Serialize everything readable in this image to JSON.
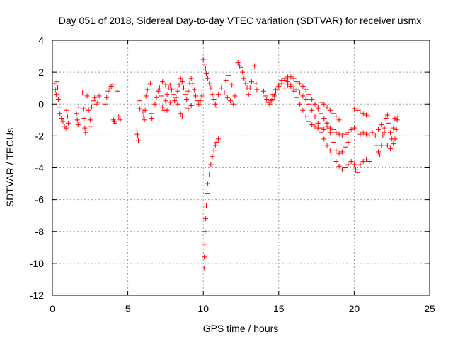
{
  "chart_data": {
    "type": "scatter",
    "title": "Day 051 of 2018, Sidereal Day-to-day VTEC variation (SDTVAR) for receiver usmx",
    "xlabel": "GPS time / hours",
    "ylabel": "SDTVAR / TECUs",
    "xlim": [
      0,
      25
    ],
    "ylim": [
      -12,
      4
    ],
    "xticks": [
      0,
      5,
      10,
      15,
      20,
      25
    ],
    "xtick_labels": [
      "0",
      "5",
      "10",
      "15",
      "20",
      "25"
    ],
    "yticks": [
      4,
      2,
      0,
      -2,
      -4,
      -6,
      -8,
      -10,
      -12
    ],
    "ytick_labels": [
      "4",
      "2",
      "0",
      "-2",
      "-4",
      "-6",
      "-8",
      "-10",
      "-12"
    ],
    "grid": true,
    "marker": "+",
    "color": "#ff0000",
    "series": [
      {
        "name": "SDTVAR",
        "points": [
          [
            0.15,
            1.3
          ],
          [
            0.2,
            0.9
          ],
          [
            0.25,
            0.6
          ],
          [
            0.3,
            1.4
          ],
          [
            0.35,
            1.0
          ],
          [
            0.4,
            0.3
          ],
          [
            0.45,
            -0.2
          ],
          [
            0.5,
            -0.6
          ],
          [
            0.6,
            -0.9
          ],
          [
            0.7,
            -1.1
          ],
          [
            0.8,
            -1.4
          ],
          [
            0.9,
            -1.5
          ],
          [
            0.95,
            -0.4
          ],
          [
            1.0,
            -0.8
          ],
          [
            1.05,
            -1.2
          ],
          [
            1.6,
            -0.6
          ],
          [
            1.65,
            -1.0
          ],
          [
            1.7,
            -1.3
          ],
          [
            1.75,
            -0.2
          ],
          [
            2.0,
            0.7
          ],
          [
            2.05,
            -0.3
          ],
          [
            2.1,
            -0.9
          ],
          [
            2.15,
            -1.5
          ],
          [
            2.2,
            -1.8
          ],
          [
            2.3,
            0.5
          ],
          [
            2.4,
            -0.4
          ],
          [
            2.5,
            -1.0
          ],
          [
            2.55,
            -1.4
          ],
          [
            2.6,
            -0.2
          ],
          [
            2.7,
            0.2
          ],
          [
            2.8,
            0.4
          ],
          [
            2.9,
            0.0
          ],
          [
            3.0,
            0.1
          ],
          [
            3.1,
            0.5
          ],
          [
            3.5,
            0.0
          ],
          [
            3.6,
            0.4
          ],
          [
            3.7,
            0.8
          ],
          [
            3.8,
            1.0
          ],
          [
            3.9,
            1.1
          ],
          [
            4.0,
            1.2
          ],
          [
            4.05,
            -1.0
          ],
          [
            4.1,
            -1.1
          ],
          [
            4.15,
            -1.2
          ],
          [
            4.3,
            0.8
          ],
          [
            4.4,
            -0.8
          ],
          [
            4.5,
            -1.0
          ],
          [
            5.6,
            -1.7
          ],
          [
            5.62,
            -1.9
          ],
          [
            5.65,
            -2.0
          ],
          [
            5.7,
            -2.3
          ],
          [
            5.75,
            0.2
          ],
          [
            5.8,
            -0.3
          ],
          [
            6.0,
            -0.5
          ],
          [
            6.05,
            -0.8
          ],
          [
            6.1,
            -1.0
          ],
          [
            6.15,
            -0.4
          ],
          [
            6.2,
            0.5
          ],
          [
            6.3,
            0.9
          ],
          [
            6.4,
            1.2
          ],
          [
            6.5,
            1.3
          ],
          [
            6.55,
            -0.6
          ],
          [
            6.6,
            -0.9
          ],
          [
            6.8,
            0.0
          ],
          [
            6.9,
            0.4
          ],
          [
            7.0,
            0.8
          ],
          [
            7.1,
            1.0
          ],
          [
            7.2,
            0.5
          ],
          [
            7.3,
            -0.2
          ],
          [
            7.4,
            -0.4
          ],
          [
            7.5,
            0.2
          ],
          [
            7.6,
            0.6
          ],
          [
            7.7,
            1.0
          ],
          [
            7.8,
            1.2
          ],
          [
            7.9,
            0.9
          ],
          [
            8.0,
            0.6
          ],
          [
            8.1,
            0.2
          ],
          [
            8.2,
            0.4
          ],
          [
            8.3,
            0.8
          ],
          [
            8.4,
            1.2
          ],
          [
            8.5,
            1.6
          ],
          [
            8.6,
            1.4
          ],
          [
            8.7,
            1.0
          ],
          [
            8.8,
            0.6
          ],
          [
            8.9,
            0.3
          ],
          [
            9.0,
            0.8
          ],
          [
            9.1,
            1.3
          ],
          [
            9.2,
            1.6
          ],
          [
            9.3,
            1.3
          ],
          [
            9.4,
            0.9
          ],
          [
            9.5,
            0.5
          ],
          [
            9.6,
            0.2
          ],
          [
            9.7,
            0.0
          ],
          [
            9.8,
            0.2
          ],
          [
            9.9,
            0.5
          ],
          [
            7.3,
            1.4
          ],
          [
            7.5,
            1.2
          ],
          [
            8.0,
            1.0
          ],
          [
            8.5,
            -0.6
          ],
          [
            8.8,
            -0.2
          ],
          [
            9.0,
            -0.3
          ],
          [
            9.2,
            -0.1
          ],
          [
            8.6,
            -0.8
          ],
          [
            8.3,
            0.0
          ],
          [
            7.8,
            0.1
          ],
          [
            7.6,
            -0.4
          ],
          [
            10.0,
            2.8
          ],
          [
            10.1,
            2.5
          ],
          [
            10.15,
            2.2
          ],
          [
            10.2,
            1.9
          ],
          [
            10.3,
            1.6
          ],
          [
            10.4,
            1.3
          ],
          [
            10.5,
            1.0
          ],
          [
            10.6,
            0.6
          ],
          [
            10.7,
            0.3
          ],
          [
            10.8,
            0.0
          ],
          [
            10.9,
            -0.2
          ],
          [
            10.05,
            -10.3
          ],
          [
            10.07,
            -9.6
          ],
          [
            10.1,
            -8.8
          ],
          [
            10.12,
            -8.0
          ],
          [
            10.15,
            -7.2
          ],
          [
            10.2,
            -6.4
          ],
          [
            10.25,
            -5.6
          ],
          [
            10.3,
            -5.0
          ],
          [
            10.4,
            -4.4
          ],
          [
            10.5,
            -3.8
          ],
          [
            10.6,
            -3.3
          ],
          [
            10.7,
            -2.9
          ],
          [
            10.8,
            -2.6
          ],
          [
            10.9,
            -2.4
          ],
          [
            11.0,
            -2.2
          ],
          [
            11.0,
            0.6
          ],
          [
            11.2,
            1.0
          ],
          [
            11.4,
            0.7
          ],
          [
            11.6,
            0.4
          ],
          [
            11.8,
            0.2
          ],
          [
            12.0,
            0.0
          ],
          [
            11.5,
            1.5
          ],
          [
            11.7,
            1.8
          ],
          [
            11.9,
            1.2
          ],
          [
            12.1,
            0.5
          ],
          [
            12.3,
            2.6
          ],
          [
            12.4,
            2.4
          ],
          [
            12.5,
            2.3
          ],
          [
            12.6,
            2.0
          ],
          [
            12.7,
            1.6
          ],
          [
            12.8,
            1.3
          ],
          [
            12.9,
            1.0
          ],
          [
            13.0,
            0.6
          ],
          [
            13.1,
            1.0
          ],
          [
            13.2,
            1.4
          ],
          [
            13.3,
            2.2
          ],
          [
            13.4,
            2.4
          ],
          [
            13.5,
            1.3
          ],
          [
            13.55,
            0.9
          ],
          [
            14.0,
            0.8
          ],
          [
            14.1,
            0.5
          ],
          [
            14.2,
            0.3
          ],
          [
            14.3,
            0.1
          ],
          [
            14.4,
            0.0
          ],
          [
            14.5,
            0.2
          ],
          [
            14.6,
            0.3
          ],
          [
            14.7,
            0.5
          ],
          [
            14.8,
            0.7
          ],
          [
            14.9,
            0.9
          ],
          [
            15.0,
            1.1
          ],
          [
            15.2,
            1.3
          ],
          [
            15.4,
            1.5
          ],
          [
            15.6,
            1.7
          ],
          [
            15.8,
            1.7
          ],
          [
            16.0,
            1.6
          ],
          [
            16.2,
            1.4
          ],
          [
            16.4,
            1.3
          ],
          [
            16.6,
            1.1
          ],
          [
            16.8,
            0.9
          ],
          [
            17.0,
            0.6
          ],
          [
            17.2,
            0.3
          ],
          [
            17.4,
            0.0
          ],
          [
            17.6,
            -0.3
          ],
          [
            17.8,
            -0.6
          ],
          [
            18.0,
            -0.9
          ],
          [
            18.2,
            -1.2
          ],
          [
            18.4,
            -1.5
          ],
          [
            18.6,
            -1.6
          ],
          [
            18.8,
            -1.8
          ],
          [
            19.0,
            -1.9
          ],
          [
            19.2,
            -2.0
          ],
          [
            19.4,
            -1.9
          ],
          [
            19.6,
            -1.8
          ],
          [
            19.8,
            -1.6
          ],
          [
            20.0,
            -1.5
          ],
          [
            20.2,
            -1.7
          ],
          [
            20.4,
            -1.9
          ],
          [
            20.6,
            -1.8
          ],
          [
            20.8,
            -1.9
          ],
          [
            21.0,
            -2.0
          ],
          [
            21.2,
            -1.8
          ],
          [
            14.6,
            0.6
          ],
          [
            14.8,
            0.9
          ],
          [
            15.0,
            1.2
          ],
          [
            15.2,
            1.5
          ],
          [
            15.4,
            1.6
          ],
          [
            15.6,
            1.4
          ],
          [
            15.8,
            1.2
          ],
          [
            16.0,
            0.8
          ],
          [
            16.2,
            0.4
          ],
          [
            16.4,
            0.0
          ],
          [
            16.6,
            -0.4
          ],
          [
            16.8,
            -0.8
          ],
          [
            17.0,
            -1.1
          ],
          [
            17.2,
            -1.3
          ],
          [
            17.4,
            -1.4
          ],
          [
            17.6,
            -1.5
          ],
          [
            17.8,
            -1.8
          ],
          [
            18.0,
            -2.2
          ],
          [
            18.2,
            -2.6
          ],
          [
            18.4,
            -2.9
          ],
          [
            18.6,
            -3.2
          ],
          [
            18.8,
            -3.6
          ],
          [
            19.0,
            -3.9
          ],
          [
            19.2,
            -4.1
          ],
          [
            19.4,
            -4.0
          ],
          [
            19.6,
            -3.8
          ],
          [
            19.8,
            -3.6
          ],
          [
            20.0,
            -3.8
          ],
          [
            20.1,
            -4.1
          ],
          [
            20.2,
            -4.3
          ],
          [
            20.4,
            -3.8
          ],
          [
            20.6,
            -3.6
          ],
          [
            20.8,
            -3.5
          ],
          [
            21.0,
            -3.6
          ],
          [
            15.4,
            1.0
          ],
          [
            15.6,
            1.2
          ],
          [
            15.8,
            1.1
          ],
          [
            16.0,
            1.0
          ],
          [
            16.2,
            0.9
          ],
          [
            16.4,
            0.7
          ],
          [
            16.6,
            0.5
          ],
          [
            16.8,
            0.3
          ],
          [
            17.0,
            0.0
          ],
          [
            17.2,
            -0.4
          ],
          [
            17.4,
            -0.8
          ],
          [
            17.6,
            -1.2
          ],
          [
            17.8,
            -1.5
          ],
          [
            18.0,
            -1.6
          ],
          [
            18.2,
            -1.4
          ],
          [
            18.4,
            -1.8
          ],
          [
            18.6,
            -2.4
          ],
          [
            18.8,
            -2.9
          ],
          [
            19.0,
            -3.1
          ],
          [
            19.2,
            -3.0
          ],
          [
            19.4,
            -2.7
          ],
          [
            19.6,
            -2.4
          ],
          [
            17.6,
            -0.2
          ],
          [
            17.8,
            0.1
          ],
          [
            18.0,
            0.0
          ],
          [
            18.2,
            -0.2
          ],
          [
            18.4,
            -0.4
          ],
          [
            18.6,
            -0.6
          ],
          [
            18.8,
            -0.8
          ],
          [
            19.0,
            -1.0
          ],
          [
            20.0,
            -0.3
          ],
          [
            20.2,
            -0.4
          ],
          [
            20.4,
            -0.5
          ],
          [
            20.6,
            -0.6
          ],
          [
            20.8,
            -0.7
          ],
          [
            21.0,
            -0.8
          ],
          [
            21.4,
            -2.0
          ],
          [
            21.5,
            -2.6
          ],
          [
            21.6,
            -3.0
          ],
          [
            21.7,
            -3.2
          ],
          [
            21.8,
            -2.6
          ],
          [
            21.9,
            -2.0
          ],
          [
            22.0,
            -1.5
          ],
          [
            22.1,
            -0.9
          ],
          [
            22.2,
            -0.7
          ],
          [
            22.3,
            -1.2
          ],
          [
            22.4,
            -1.8
          ],
          [
            22.5,
            -2.2
          ],
          [
            22.6,
            -2.5
          ],
          [
            22.7,
            -2.2
          ],
          [
            22.8,
            -1.6
          ],
          [
            22.85,
            -1.0
          ],
          [
            22.9,
            -0.8
          ],
          [
            21.8,
            -1.3
          ],
          [
            22.0,
            -1.8
          ],
          [
            22.2,
            -2.6
          ],
          [
            22.4,
            -2.8
          ],
          [
            22.6,
            -1.5
          ],
          [
            22.7,
            -0.9
          ],
          [
            21.6,
            -1.6
          ]
        ]
      }
    ]
  }
}
